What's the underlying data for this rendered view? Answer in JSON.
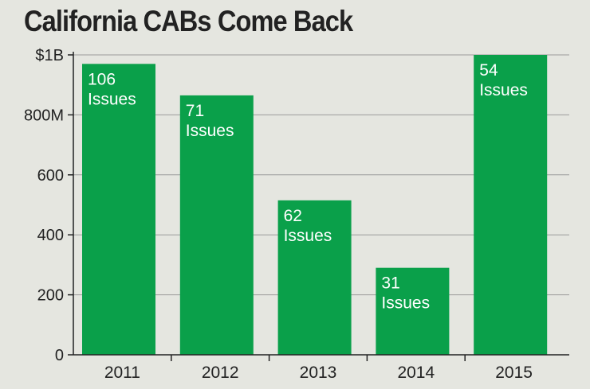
{
  "chart_data": {
    "type": "bar",
    "title": "California CABs Come Back",
    "categories": [
      "2011",
      "2012",
      "2013",
      "2014",
      "2015"
    ],
    "values": [
      970,
      865,
      515,
      290,
      1000
    ],
    "value_units": "millions of dollars",
    "bar_labels": [
      [
        "106",
        "Issues"
      ],
      [
        "71",
        "Issues"
      ],
      [
        "62",
        "Issues"
      ],
      [
        "31",
        "Issues"
      ],
      [
        "54",
        "Issues"
      ]
    ],
    "ylim": [
      0,
      1000
    ],
    "yticks": [
      0,
      200,
      400,
      600,
      800,
      1000
    ],
    "ytick_labels": [
      "0",
      "200",
      "400",
      "600",
      "800M",
      "$1B"
    ],
    "grid": true,
    "bar_color": "#0aa04a",
    "xlabel": "",
    "ylabel": ""
  }
}
